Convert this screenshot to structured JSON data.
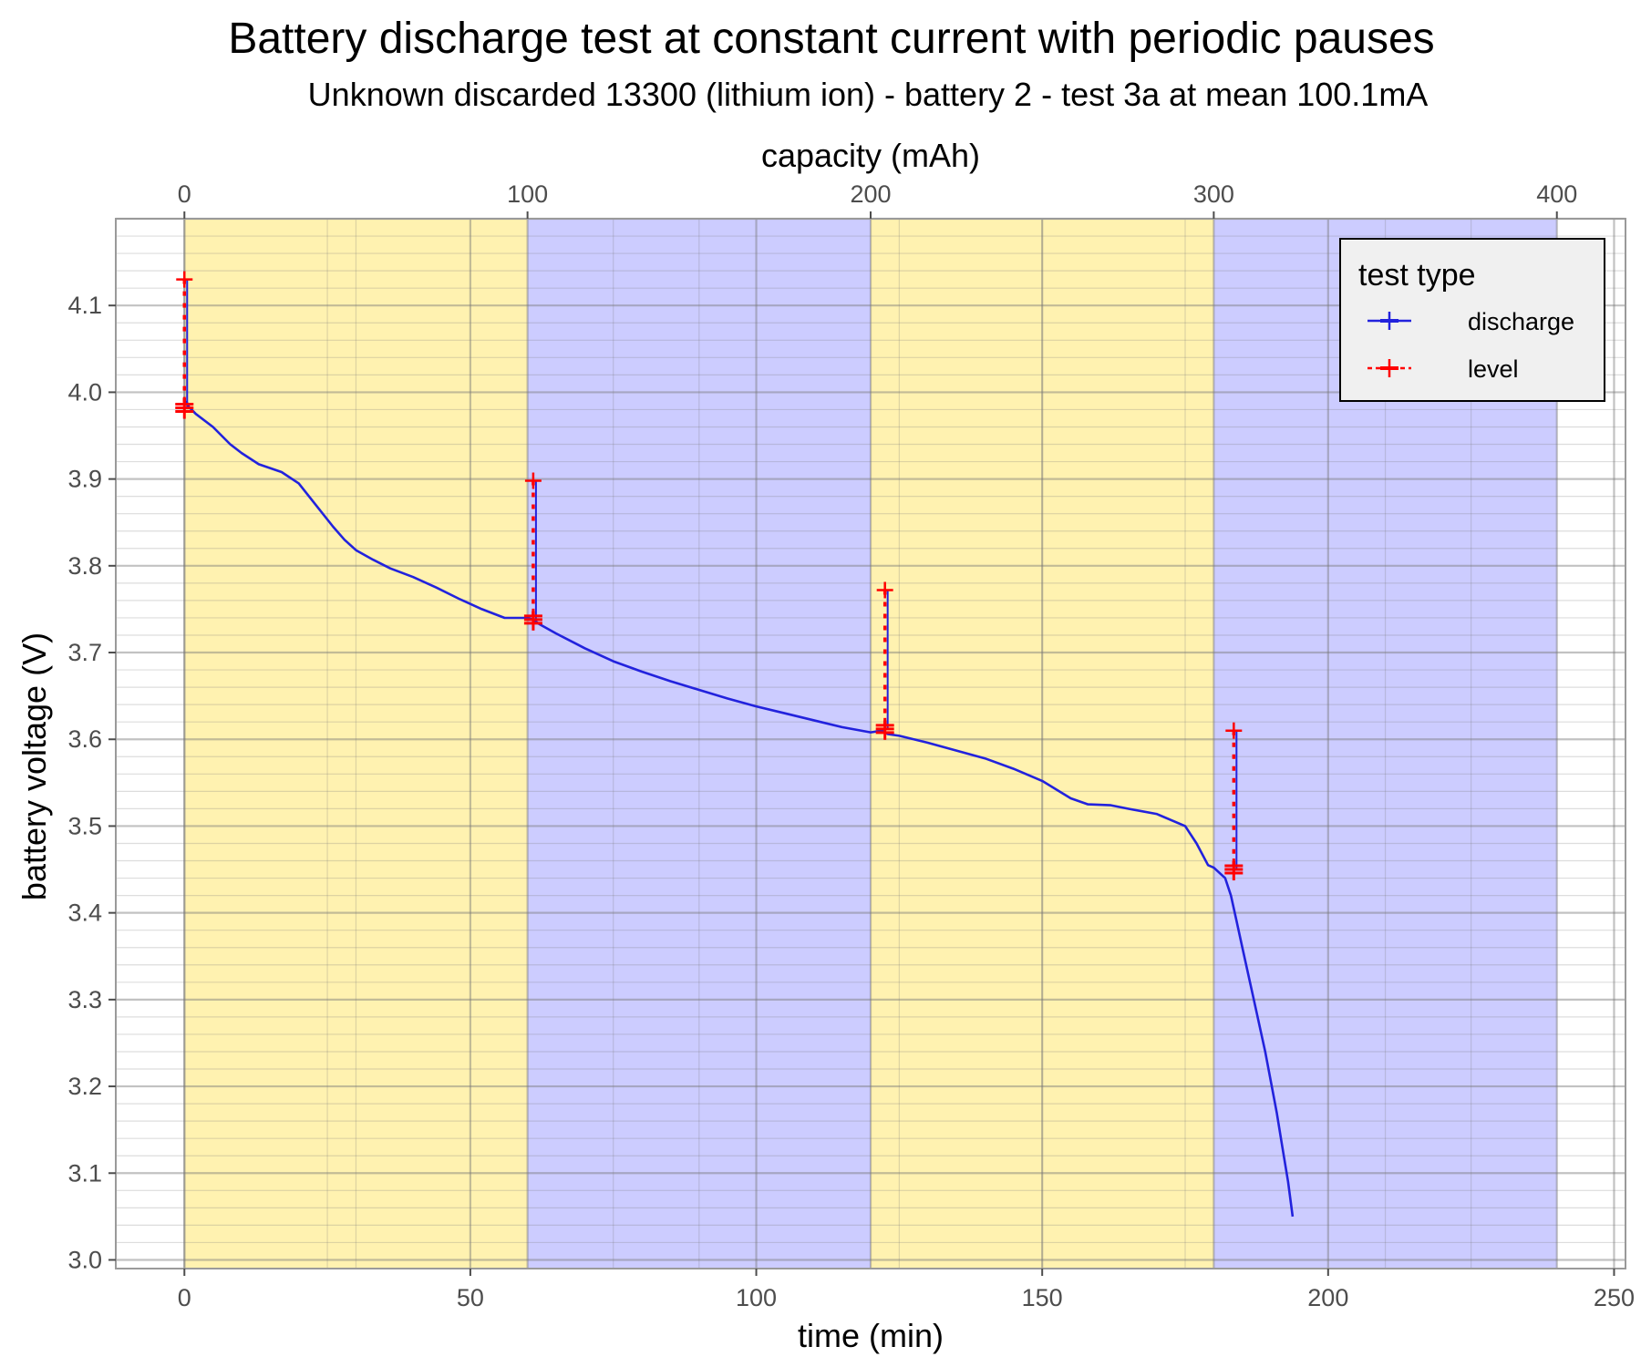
{
  "chart_data": {
    "type": "line",
    "title": "Battery discharge test at constant current with periodic pauses",
    "subtitle": "Unknown discarded 13300 (lithium ion) - battery 2 - test 3a at mean 100.1mA",
    "xlabel": "time (min)",
    "ylabel": "battery voltage (V)",
    "x2label": "capacity (mAh)",
    "xlim": [
      -12,
      252
    ],
    "ylim": [
      2.99,
      4.2
    ],
    "x2lim": [
      -20,
      420
    ],
    "xticks": [
      0,
      50,
      100,
      150,
      200,
      250
    ],
    "xtick_labels": [
      "0",
      "50",
      "100",
      "150",
      "200",
      "250"
    ],
    "x2ticks": [
      0,
      100,
      200,
      300,
      400
    ],
    "x2tick_labels": [
      "0",
      "100",
      "200",
      "300",
      "400"
    ],
    "yticks": [
      3.0,
      3.1,
      3.2,
      3.3,
      3.4,
      3.5,
      3.6,
      3.7,
      3.8,
      3.9,
      4.0,
      4.1
    ],
    "ytick_labels": [
      "3.0",
      "3.1",
      "3.2",
      "3.3",
      "3.4",
      "3.5",
      "3.6",
      "3.7",
      "3.8",
      "3.9",
      "4.0",
      "4.1"
    ],
    "grid": true,
    "background_bands": [
      {
        "x": [
          0,
          60
        ],
        "color": "#fff2b0"
      },
      {
        "x": [
          60,
          120
        ],
        "color": "#ccccff"
      },
      {
        "x": [
          120,
          180
        ],
        "color": "#fff2b0"
      },
      {
        "x": [
          180,
          240
        ],
        "color": "#ccccff"
      }
    ],
    "legend": {
      "title": "test type",
      "position": "top-right",
      "entries": [
        {
          "label": "discharge",
          "color": "#2222dd"
        },
        {
          "label": "level",
          "color": "#ff0000"
        }
      ]
    },
    "series": [
      {
        "name": "discharge",
        "color": "#2222dd",
        "x": [
          0.3,
          0.8,
          2,
          5,
          8,
          10,
          13,
          17,
          20,
          23,
          26,
          28,
          30,
          33,
          36,
          40,
          44,
          48,
          52,
          56,
          60,
          61,
          62,
          65,
          70,
          75,
          80,
          85,
          90,
          95,
          100,
          105,
          110,
          115,
          120,
          122,
          123,
          125,
          130,
          135,
          140,
          145,
          150,
          153,
          155,
          158,
          162,
          165,
          170,
          175,
          177,
          179,
          180,
          182,
          183,
          184,
          185,
          187,
          189,
          191,
          192,
          193,
          193.8
        ],
        "y": [
          3.99,
          3.983,
          3.975,
          3.96,
          3.94,
          3.93,
          3.917,
          3.908,
          3.895,
          3.87,
          3.845,
          3.83,
          3.818,
          3.807,
          3.797,
          3.787,
          3.775,
          3.762,
          3.75,
          3.74,
          3.74,
          3.738,
          3.733,
          3.722,
          3.705,
          3.69,
          3.678,
          3.667,
          3.657,
          3.647,
          3.638,
          3.63,
          3.622,
          3.614,
          3.608,
          3.61,
          3.606,
          3.604,
          3.596,
          3.587,
          3.578,
          3.566,
          3.552,
          3.54,
          3.532,
          3.525,
          3.524,
          3.52,
          3.514,
          3.5,
          3.48,
          3.455,
          3.452,
          3.44,
          3.42,
          3.39,
          3.36,
          3.3,
          3.24,
          3.17,
          3.13,
          3.09,
          3.05
        ]
      },
      {
        "name": "level",
        "color": "#ff0000",
        "pauses": [
          {
            "x": 0,
            "top": 4.13,
            "bottom": 3.982
          },
          {
            "x": 61,
            "top": 3.898,
            "bottom": 3.738
          },
          {
            "x": 122.5,
            "top": 3.772,
            "bottom": 3.612
          },
          {
            "x": 183.5,
            "top": 3.61,
            "bottom": 3.45
          }
        ]
      }
    ]
  }
}
